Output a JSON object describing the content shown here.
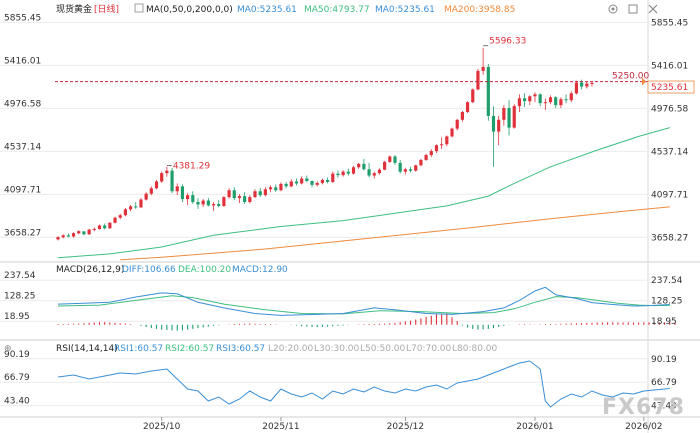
{
  "header": {
    "symbol": "现货黄金",
    "period": "[日线]",
    "ma_label": "MA(0,50,0,200,0,0)",
    "ma5_text": "MA0:5235.61",
    "ma50_text": "MA50:4793.77",
    "ma0_text": "MA0:5235.61",
    "ma200_text": "MA200:3958.85"
  },
  "macd_header": {
    "title": "MACD(26,12,9)",
    "diff_text": "DIFF:106.66",
    "dea_text": "DEA:100.20",
    "macd_text": "MACD:12.90"
  },
  "rsi_header": {
    "title": "RSI(14,14,14)",
    "rsi1_text": "RSI1:60.57",
    "rsi2_text": "RSI2:60.57",
    "rsi3_text": "RSI3:60.57",
    "l20": "L20:20.00",
    "l30": "L30:30.00",
    "l50": "L50:50.00",
    "l70": "L70:70.00",
    "l80": "L80:80.00"
  },
  "colors": {
    "up": "#e0303a",
    "down": "#1e9e6a",
    "ma50": "#3dbf7f",
    "ma200": "#f08a3c",
    "diff": "#3a8fd6",
    "dea": "#3dbf7f",
    "grid": "#ececec",
    "ref_line": "#c0283a",
    "rsi": "#3a8fd6"
  },
  "watermark": "FX678",
  "icons": [
    "gear-icon",
    "expand-icon",
    "close-icon"
  ],
  "annotations": {
    "high_label": "5596.33",
    "prev_high_label": "4381.29",
    "ref_label": "5250.00",
    "last_price_label": "5235.61"
  },
  "chart_data": [
    {
      "type": "candlestick",
      "title": "现货黄金 [日线]",
      "y_ticks": [
        5855.45,
        5416.01,
        4976.58,
        4537.14,
        4097.71,
        3658.27
      ],
      "y_range": [
        3448,
        5900
      ],
      "x_ticks": [
        "2025/10",
        "2025/11",
        "2025/12",
        "2026/01",
        "2026/02"
      ],
      "x_tick_index": [
        20,
        43,
        67,
        92,
        113
      ],
      "reference_line": 5250.0,
      "last_price": 5235.61,
      "high": 5596.33,
      "swing_high": 4381.29,
      "ohlc": [
        [
          3638,
          3672,
          3628,
          3661
        ],
        [
          3660,
          3690,
          3648,
          3680
        ],
        [
          3679,
          3700,
          3660,
          3668
        ],
        [
          3668,
          3710,
          3655,
          3702
        ],
        [
          3700,
          3730,
          3690,
          3722
        ],
        [
          3720,
          3722,
          3680,
          3690
        ],
        [
          3690,
          3745,
          3685,
          3738
        ],
        [
          3738,
          3760,
          3720,
          3745
        ],
        [
          3744,
          3790,
          3738,
          3780
        ],
        [
          3780,
          3800,
          3740,
          3752
        ],
        [
          3752,
          3815,
          3745,
          3808
        ],
        [
          3808,
          3870,
          3800,
          3860
        ],
        [
          3860,
          3900,
          3845,
          3885
        ],
        [
          3885,
          3960,
          3875,
          3945
        ],
        [
          3945,
          3990,
          3925,
          3975
        ],
        [
          3975,
          4020,
          3950,
          3965
        ],
        [
          3965,
          4060,
          3960,
          4045
        ],
        [
          4045,
          4120,
          4035,
          4105
        ],
        [
          4105,
          4180,
          4090,
          4160
        ],
        [
          4160,
          4245,
          4150,
          4230
        ],
        [
          4230,
          4330,
          4215,
          4315
        ],
        [
          4315,
          4381,
          4280,
          4340
        ],
        [
          4340,
          4370,
          4110,
          4130
        ],
        [
          4130,
          4210,
          4090,
          4180
        ],
        [
          4180,
          4200,
          4020,
          4050
        ],
        [
          4050,
          4110,
          3990,
          4090
        ],
        [
          4090,
          4130,
          4000,
          4020
        ],
        [
          4020,
          4060,
          3950,
          3995
        ],
        [
          3995,
          4050,
          3970,
          4035
        ],
        [
          4035,
          4060,
          3975,
          3985
        ],
        [
          3985,
          4020,
          3930,
          4000
        ],
        [
          4000,
          4040,
          3965,
          3980
        ],
        [
          3980,
          4080,
          3970,
          4070
        ],
        [
          4070,
          4160,
          4055,
          4140
        ],
        [
          4140,
          4170,
          4040,
          4060
        ],
        [
          4060,
          4100,
          4010,
          4080
        ],
        [
          4080,
          4120,
          4000,
          4020
        ],
        [
          4020,
          4090,
          4005,
          4070
        ],
        [
          4070,
          4150,
          4060,
          4130
        ],
        [
          4130,
          4165,
          4070,
          4090
        ],
        [
          4090,
          4170,
          4080,
          4150
        ],
        [
          4150,
          4190,
          4120,
          4170
        ],
        [
          4170,
          4200,
          4125,
          4140
        ],
        [
          4140,
          4220,
          4130,
          4205
        ],
        [
          4205,
          4225,
          4160,
          4180
        ],
        [
          4180,
          4250,
          4170,
          4230
        ],
        [
          4230,
          4260,
          4190,
          4210
        ],
        [
          4210,
          4280,
          4200,
          4260
        ],
        [
          4260,
          4290,
          4220,
          4235
        ],
        [
          4235,
          4240,
          4170,
          4195
        ],
        [
          4195,
          4230,
          4180,
          4215
        ],
        [
          4215,
          4260,
          4200,
          4245
        ],
        [
          4245,
          4270,
          4210,
          4225
        ],
        [
          4225,
          4330,
          4215,
          4310
        ],
        [
          4310,
          4340,
          4270,
          4295
        ],
        [
          4295,
          4345,
          4280,
          4330
        ],
        [
          4330,
          4360,
          4290,
          4310
        ],
        [
          4310,
          4390,
          4300,
          4375
        ],
        [
          4375,
          4420,
          4360,
          4410
        ],
        [
          4410,
          4460,
          4340,
          4355
        ],
        [
          4355,
          4420,
          4270,
          4290
        ],
        [
          4290,
          4330,
          4260,
          4315
        ],
        [
          4315,
          4365,
          4300,
          4350
        ],
        [
          4350,
          4440,
          4345,
          4430
        ],
        [
          4430,
          4495,
          4420,
          4485
        ],
        [
          4485,
          4500,
          4400,
          4420
        ],
        [
          4420,
          4450,
          4310,
          4330
        ],
        [
          4330,
          4370,
          4300,
          4355
        ],
        [
          4355,
          4380,
          4320,
          4340
        ],
        [
          4340,
          4400,
          4330,
          4395
        ],
        [
          4395,
          4460,
          4385,
          4450
        ],
        [
          4450,
          4510,
          4440,
          4500
        ],
        [
          4500,
          4560,
          4480,
          4540
        ],
        [
          4540,
          4610,
          4520,
          4600
        ],
        [
          4600,
          4680,
          4560,
          4610
        ],
        [
          4610,
          4700,
          4590,
          4690
        ],
        [
          4690,
          4780,
          4680,
          4770
        ],
        [
          4770,
          4870,
          4750,
          4860
        ],
        [
          4860,
          4950,
          4840,
          4940
        ],
        [
          4940,
          5050,
          4930,
          5040
        ],
        [
          5040,
          5180,
          5030,
          5170
        ],
        [
          5170,
          5380,
          5160,
          5360
        ],
        [
          5360,
          5596,
          5320,
          5400
        ],
        [
          5400,
          5430,
          4850,
          4900
        ],
        [
          4900,
          5000,
          4380,
          4740
        ],
        [
          4740,
          4900,
          4600,
          4860
        ],
        [
          4860,
          5010,
          4800,
          4980
        ],
        [
          4980,
          5060,
          4700,
          4780
        ],
        [
          4780,
          5020,
          4770,
          5000
        ],
        [
          5000,
          5120,
          4940,
          5080
        ],
        [
          5080,
          5130,
          4990,
          5050
        ],
        [
          5050,
          5110,
          5010,
          5100
        ],
        [
          5100,
          5140,
          5040,
          5120
        ],
        [
          5120,
          5130,
          5000,
          5030
        ],
        [
          5030,
          5080,
          4960,
          5040
        ],
        [
          5040,
          5110,
          5020,
          5090
        ],
        [
          5090,
          5100,
          4980,
          5010
        ],
        [
          5010,
          5090,
          4980,
          5070
        ],
        [
          5070,
          5120,
          5030,
          5060
        ],
        [
          5060,
          5150,
          5040,
          5130
        ],
        [
          5130,
          5260,
          5120,
          5240
        ],
        [
          5240,
          5270,
          5170,
          5200
        ],
        [
          5200,
          5250,
          5180,
          5230
        ],
        [
          5230,
          5255,
          5200,
          5236
        ]
      ],
      "ma50": [
        [
          0,
          3450
        ],
        [
          10,
          3490
        ],
        [
          20,
          3560
        ],
        [
          30,
          3680
        ],
        [
          43,
          3770
        ],
        [
          55,
          3830
        ],
        [
          67,
          3920
        ],
        [
          75,
          3980
        ],
        [
          83,
          4080
        ],
        [
          88,
          4210
        ],
        [
          95,
          4380
        ],
        [
          104,
          4550
        ],
        [
          112,
          4690
        ],
        [
          118,
          4780
        ]
      ],
      "ma200": [
        [
          12,
          3430
        ],
        [
          20,
          3455
        ],
        [
          40,
          3540
        ],
        [
          60,
          3650
        ],
        [
          80,
          3760
        ],
        [
          95,
          3850
        ],
        [
          110,
          3930
        ],
        [
          118,
          3970
        ]
      ]
    },
    {
      "type": "macd",
      "title": "MACD(26,12,9)",
      "y_ticks": [
        237.54,
        128.25,
        18.95
      ],
      "y_range": [
        -60,
        260
      ],
      "diff": [
        [
          0,
          110
        ],
        [
          5,
          115
        ],
        [
          10,
          120
        ],
        [
          15,
          148
        ],
        [
          20,
          170
        ],
        [
          23,
          165
        ],
        [
          27,
          120
        ],
        [
          32,
          90
        ],
        [
          38,
          60
        ],
        [
          43,
          50
        ],
        [
          50,
          55
        ],
        [
          55,
          60
        ],
        [
          61,
          90
        ],
        [
          65,
          80
        ],
        [
          71,
          60
        ],
        [
          76,
          55
        ],
        [
          82,
          70
        ],
        [
          86,
          90
        ],
        [
          89,
          130
        ],
        [
          92,
          180
        ],
        [
          94,
          200
        ],
        [
          96,
          160
        ],
        [
          100,
          140
        ],
        [
          103,
          118
        ],
        [
          107,
          108
        ],
        [
          111,
          100
        ],
        [
          114,
          102
        ],
        [
          118,
          108
        ]
      ],
      "dea": [
        [
          0,
          100
        ],
        [
          8,
          105
        ],
        [
          15,
          130
        ],
        [
          22,
          155
        ],
        [
          26,
          145
        ],
        [
          32,
          110
        ],
        [
          40,
          80
        ],
        [
          47,
          60
        ],
        [
          55,
          58
        ],
        [
          62,
          75
        ],
        [
          70,
          70
        ],
        [
          78,
          60
        ],
        [
          84,
          65
        ],
        [
          88,
          85
        ],
        [
          92,
          120
        ],
        [
          96,
          150
        ],
        [
          100,
          145
        ],
        [
          104,
          130
        ],
        [
          108,
          115
        ],
        [
          112,
          105
        ],
        [
          115,
          102
        ],
        [
          118,
          103
        ]
      ],
      "histogram": [
        4,
        4,
        4,
        5,
        6,
        8,
        10,
        12,
        14,
        14,
        12,
        10,
        8,
        6,
        3,
        0,
        -6,
        -12,
        -18,
        -22,
        -26,
        -28,
        -30,
        -32,
        -30,
        -26,
        -22,
        -18,
        -14,
        -10,
        -6,
        -3,
        0,
        2,
        4,
        5,
        5,
        6,
        5,
        4,
        4,
        3,
        2,
        0,
        0,
        -2,
        -4,
        -8,
        -10,
        -12,
        -13,
        -12,
        -10,
        -8,
        -6,
        -4,
        -2,
        0,
        2,
        3,
        4,
        4,
        5,
        6,
        8,
        10,
        14,
        18,
        22,
        28,
        34,
        42,
        48,
        56,
        60,
        62,
        40,
        20,
        -5,
        -15,
        -22,
        -26,
        -25,
        -22,
        -18,
        -12,
        -6,
        -2,
        0,
        2,
        3,
        2,
        1,
        2,
        3,
        4,
        3,
        5,
        6,
        7,
        8,
        9,
        10,
        11,
        12,
        12,
        13,
        13,
        12,
        12,
        13,
        12,
        12,
        13,
        13,
        13,
        12,
        13,
        13,
        13
      ]
    },
    {
      "type": "line",
      "title": "RSI(14,14,14)",
      "y_ticks": [
        90.19,
        66.79,
        43.4
      ],
      "y_range": [
        35,
        95
      ],
      "rsi": [
        [
          0,
          72
        ],
        [
          3,
          74
        ],
        [
          6,
          70
        ],
        [
          9,
          73
        ],
        [
          12,
          76
        ],
        [
          15,
          75
        ],
        [
          18,
          78
        ],
        [
          21,
          80
        ],
        [
          23,
          70
        ],
        [
          25,
          60
        ],
        [
          27,
          58
        ],
        [
          29,
          48
        ],
        [
          31,
          52
        ],
        [
          33,
          45
        ],
        [
          35,
          50
        ],
        [
          37,
          58
        ],
        [
          39,
          52
        ],
        [
          41,
          48
        ],
        [
          43,
          60
        ],
        [
          45,
          55
        ],
        [
          47,
          52
        ],
        [
          49,
          56
        ],
        [
          51,
          50
        ],
        [
          53,
          58
        ],
        [
          55,
          55
        ],
        [
          57,
          60
        ],
        [
          59,
          57
        ],
        [
          61,
          62
        ],
        [
          63,
          58
        ],
        [
          65,
          56
        ],
        [
          67,
          60
        ],
        [
          69,
          58
        ],
        [
          71,
          62
        ],
        [
          73,
          64
        ],
        [
          75,
          60
        ],
        [
          77,
          66
        ],
        [
          79,
          68
        ],
        [
          81,
          70
        ],
        [
          83,
          74
        ],
        [
          85,
          78
        ],
        [
          87,
          82
        ],
        [
          89,
          86
        ],
        [
          91,
          88
        ],
        [
          93,
          80
        ],
        [
          94,
          48
        ],
        [
          95,
          42
        ],
        [
          97,
          50
        ],
        [
          99,
          55
        ],
        [
          101,
          52
        ],
        [
          103,
          58
        ],
        [
          105,
          54
        ],
        [
          107,
          52
        ],
        [
          109,
          56
        ],
        [
          111,
          55
        ],
        [
          113,
          58
        ],
        [
          115,
          59
        ],
        [
          117,
          60
        ],
        [
          118,
          60.57
        ]
      ]
    }
  ]
}
